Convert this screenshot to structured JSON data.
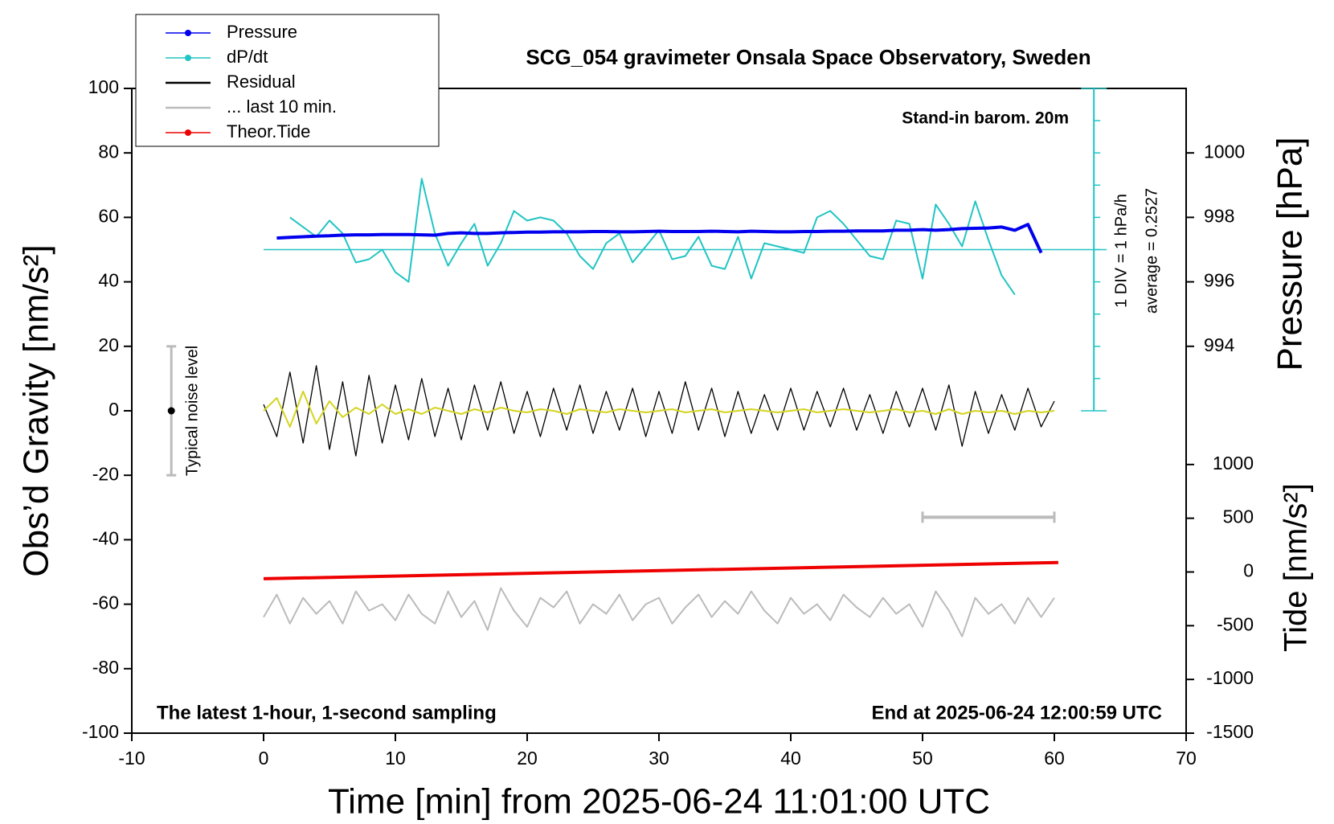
{
  "chart_data": {
    "type": "line",
    "title": "SCG_054 gravimeter Onsala Space Observatory, Sweden",
    "subtitle": "Stand-in barom. 20m",
    "annotations": {
      "scale": "1 DIV = 1 hPa/h",
      "average": "average = 0.2527",
      "left_note": "The latest 1-hour, 1-second sampling",
      "right_note": "End at 2025-06-24 12:00:59 UTC",
      "noise": "Typical noise level"
    },
    "x_label": "Time [min] from 2025-06-24 11:01:00 UTC",
    "y_label": "Obs’d Gravity [nm/s²]",
    "y2_label": "Pressure [hPa]",
    "y3_label": "Tide [nm/s²]",
    "xlim": [
      -10,
      70
    ],
    "xticks": [
      -10,
      0,
      10,
      20,
      30,
      40,
      50,
      60,
      70
    ],
    "ylim": [
      -100,
      100
    ],
    "yticks": [
      -100,
      -80,
      -60,
      -40,
      -20,
      0,
      20,
      40,
      60,
      80,
      100
    ],
    "y2lim": [
      982,
      1002
    ],
    "y2ticks": [
      994,
      996,
      998,
      1000
    ],
    "y3lim": [
      -1500,
      4500
    ],
    "y3ticks": [
      -1500,
      -1000,
      -500,
      0,
      500,
      1000
    ],
    "dpdt_axis": {
      "x": 63,
      "baseline": 50,
      "ticks": [
        0,
        10,
        20,
        30,
        40,
        50,
        60,
        70,
        80,
        90,
        100
      ]
    },
    "noise_bar": {
      "x": -7,
      "values": [
        -20,
        0,
        20
      ]
    },
    "last10_bar": {
      "x": [
        50,
        60
      ],
      "y": -33
    },
    "x": [
      0,
      1,
      2,
      3,
      4,
      5,
      6,
      7,
      8,
      9,
      10,
      11,
      12,
      13,
      14,
      15,
      16,
      17,
      18,
      19,
      20,
      21,
      22,
      23,
      24,
      25,
      26,
      27,
      28,
      29,
      30,
      31,
      32,
      33,
      34,
      35,
      36,
      37,
      38,
      39,
      40,
      41,
      42,
      43,
      44,
      45,
      46,
      47,
      48,
      49,
      50,
      51,
      52,
      53,
      54,
      55,
      56,
      57,
      58,
      59,
      60
    ],
    "series": [
      {
        "name": "Pressure",
        "color": "#0000ee",
        "axis": "y2",
        "marker": true,
        "width": 4,
        "values": [
          null,
          997.36,
          997.38,
          997.4,
          997.42,
          997.43,
          997.45,
          997.46,
          997.46,
          997.47,
          997.47,
          997.47,
          997.46,
          997.45,
          997.5,
          997.52,
          997.5,
          997.5,
          997.52,
          997.53,
          997.54,
          997.54,
          997.55,
          997.55,
          997.55,
          997.56,
          997.56,
          997.55,
          997.55,
          997.56,
          997.57,
          997.56,
          997.56,
          997.56,
          997.57,
          997.56,
          997.55,
          997.57,
          997.56,
          997.55,
          997.55,
          997.56,
          997.56,
          997.57,
          997.57,
          997.58,
          997.58,
          997.58,
          997.6,
          997.6,
          997.62,
          997.6,
          997.62,
          997.65,
          997.66,
          997.67,
          997.7,
          997.6,
          997.78,
          996.9,
          null
        ]
      },
      {
        "name": "dP/dt",
        "color": "#22c4c4",
        "marker": true,
        "width": 2,
        "values": [
          null,
          null,
          60,
          57,
          54,
          59,
          55,
          46,
          47,
          50,
          43,
          40,
          72,
          55,
          45,
          52,
          58,
          45,
          52,
          62,
          59,
          60,
          59,
          55,
          48,
          44,
          52,
          55,
          46,
          51,
          56,
          47,
          48,
          54,
          45,
          44,
          54,
          41,
          52,
          51,
          50,
          49,
          60,
          62,
          58,
          53,
          48,
          47,
          59,
          58,
          41,
          64,
          58,
          51,
          65,
          53,
          42,
          36,
          null,
          null,
          null
        ]
      },
      {
        "name": "Residual",
        "color": "#000000",
        "marker": false,
        "width": 1.3,
        "values": [
          2,
          -8,
          12,
          -10,
          14,
          -12,
          9,
          -14,
          11,
          -10,
          8,
          -9,
          10,
          -8,
          7,
          -9,
          8,
          -6,
          9,
          -7,
          6,
          -8,
          7,
          -6,
          8,
          -7,
          6,
          -6,
          7,
          -8,
          6,
          -7,
          9,
          -6,
          7,
          -8,
          6,
          -7,
          5,
          -6,
          7,
          -6,
          6,
          -5,
          7,
          -6,
          5,
          -7,
          6,
          -5,
          7,
          -6,
          8,
          -11,
          6,
          -7,
          5,
          -6,
          7,
          -5,
          3
        ]
      },
      {
        "color": "#d4d420",
        "marker": false,
        "width": 2,
        "values": [
          0,
          4,
          -5,
          6,
          -4,
          3,
          -2,
          1,
          -1,
          2,
          -1,
          0.5,
          -1,
          1,
          0,
          -1,
          0.5,
          -0.5,
          1,
          0,
          -0.5,
          0.5,
          0,
          -1,
          0.5,
          0,
          -0.5,
          0.5,
          0,
          -0.5,
          0,
          0.5,
          -0.5,
          0,
          0.5,
          -0.5,
          0,
          0.5,
          0,
          -0.5,
          0,
          0.5,
          -0.5,
          0,
          0.5,
          0,
          -0.5,
          0,
          0.5,
          -0.5,
          0,
          -1,
          0.5,
          -1,
          0,
          -0.5,
          0,
          -1,
          0,
          -0.5,
          0
        ]
      },
      {
        "name": "... last 10 min.",
        "color": "#bbbbbb",
        "marker": false,
        "width": 2,
        "values": [
          -64,
          -57,
          -66,
          -58,
          -63,
          -59,
          -66,
          -56,
          -62,
          -60,
          -65,
          -57,
          -63,
          -66,
          -56,
          -64,
          -59,
          -68,
          -55,
          -62,
          -67,
          -58,
          -61,
          -56,
          -66,
          -60,
          -63,
          -57,
          -65,
          -60,
          -58,
          -66,
          -61,
          -57,
          -64,
          -59,
          -63,
          -56,
          -62,
          -66,
          -58,
          -63,
          -60,
          -65,
          -57,
          -61,
          -64,
          -58,
          -63,
          -60,
          -67,
          -56,
          -62,
          -70,
          -58,
          -63,
          -60,
          -66,
          -58,
          -64,
          -58
        ]
      },
      {
        "name": "Theor.Tide",
        "color": "#ee0000",
        "axis": "y3",
        "marker": true,
        "width": 4,
        "x": [
          0,
          60.3
        ],
        "values": [
          -63,
          88
        ]
      }
    ]
  }
}
